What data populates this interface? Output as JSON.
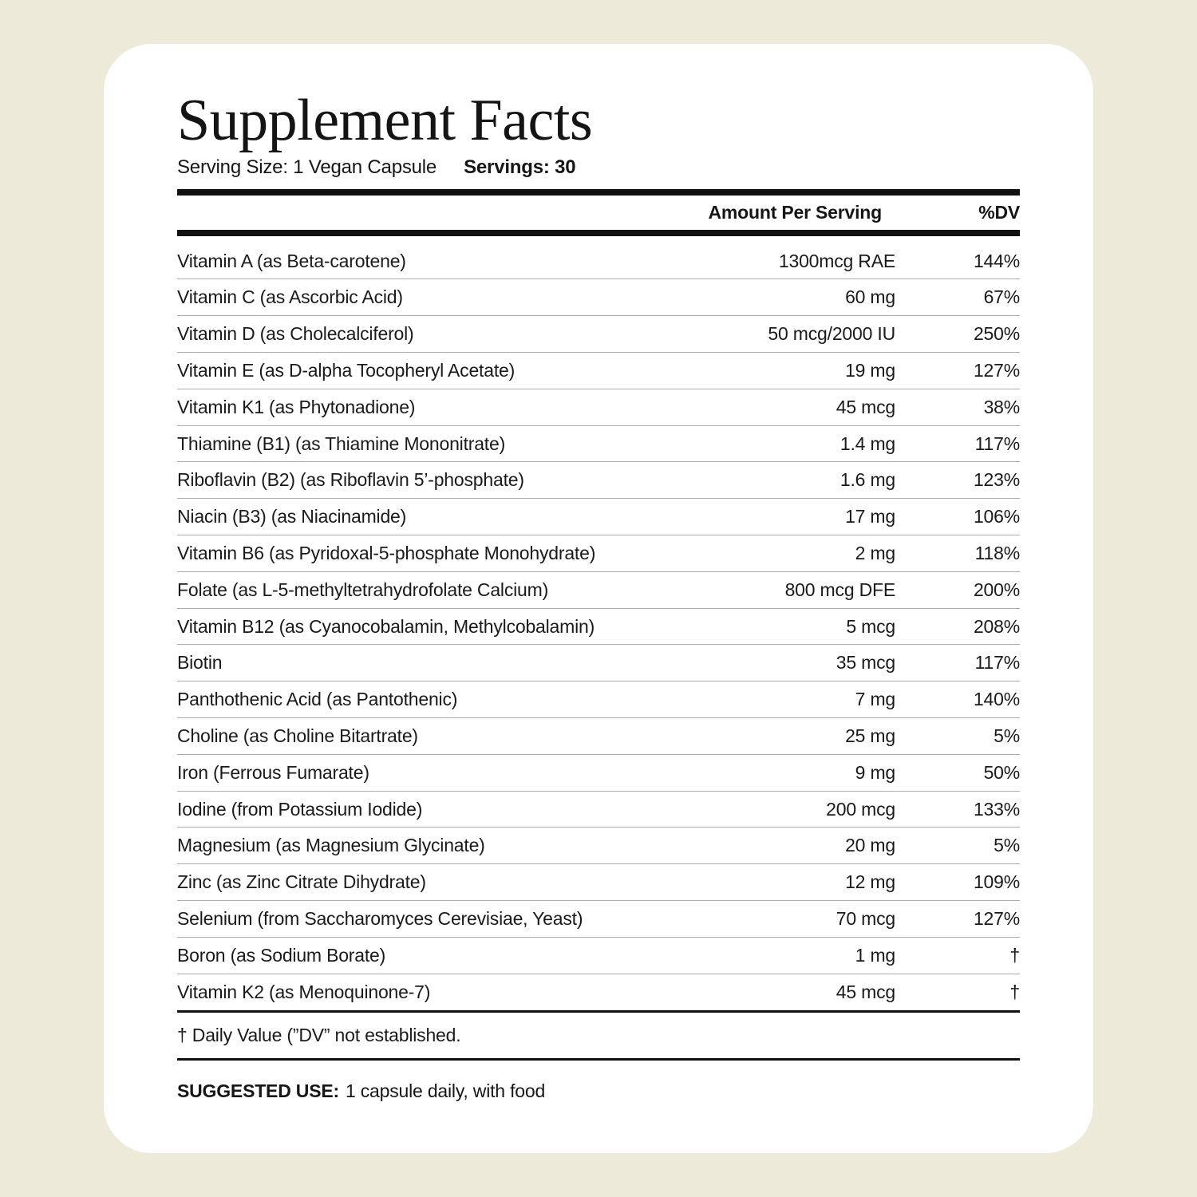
{
  "header": {
    "title": "Supplement Facts",
    "serving_size": "Serving Size: 1 Vegan Capsule",
    "servings": "Servings: 30"
  },
  "table": {
    "columns": {
      "amount": "Amount Per Serving",
      "dv": "%DV"
    },
    "rows": [
      {
        "name": "Vitamin A (as Beta-carotene)",
        "amount": "1300mcg RAE",
        "dv": "144%"
      },
      {
        "name": "Vitamin C (as Ascorbic Acid)",
        "amount": "60 mg",
        "dv": "67%"
      },
      {
        "name": "Vitamin D (as Cholecalciferol)",
        "amount": "50 mcg/2000 IU",
        "dv": "250%"
      },
      {
        "name": "Vitamin E (as D-alpha Tocopheryl Acetate)",
        "amount": "19 mg",
        "dv": "127%"
      },
      {
        "name": "Vitamin K1 (as Phytonadione)",
        "amount": "45 mcg",
        "dv": "38%"
      },
      {
        "name": "Thiamine (B1) (as Thiamine Mononitrate)",
        "amount": "1.4 mg",
        "dv": "117%"
      },
      {
        "name": "Riboflavin (B2) (as Riboflavin 5’-phosphate)",
        "amount": "1.6 mg",
        "dv": "123%"
      },
      {
        "name": "Niacin (B3) (as Niacinamide)",
        "amount": "17 mg",
        "dv": "106%"
      },
      {
        "name": "Vitamin B6 (as Pyridoxal-5-phosphate Monohydrate)",
        "amount": "2 mg",
        "dv": "118%"
      },
      {
        "name": "Folate (as L-5-methyltetrahydrofolate Calcium)",
        "amount": "800 mcg DFE",
        "dv": "200%"
      },
      {
        "name": "Vitamin B12 (as Cyanocobalamin, Methylcobalamin)",
        "amount": "5 mcg",
        "dv": "208%"
      },
      {
        "name": "Biotin",
        "amount": "35 mcg",
        "dv": "117%"
      },
      {
        "name": "Panthothenic Acid (as Pantothenic)",
        "amount": "7 mg",
        "dv": "140%"
      },
      {
        "name": "Choline (as Choline Bitartrate)",
        "amount": "25 mg",
        "dv": "5%"
      },
      {
        "name": "Iron (Ferrous Fumarate)",
        "amount": "9 mg",
        "dv": "50%"
      },
      {
        "name": "Iodine (from Potassium Iodide)",
        "amount": "200 mcg",
        "dv": "133%"
      },
      {
        "name": "Magnesium (as Magnesium Glycinate)",
        "amount": "20 mg",
        "dv": "5%"
      },
      {
        "name": "Zinc (as Zinc Citrate Dihydrate)",
        "amount": "12 mg",
        "dv": "109%"
      },
      {
        "name": "Selenium (from Saccharomyces Cerevisiae, Yeast)",
        "amount": "70 mcg",
        "dv": "127%"
      },
      {
        "name": "Boron (as Sodium Borate)",
        "amount": "1 mg",
        "dv": "†"
      },
      {
        "name": "Vitamin K2 (as Menoquinone-7)",
        "amount": "45 mcg",
        "dv": "†"
      }
    ]
  },
  "footnote": "† Daily Value (”DV” not established.",
  "suggested_use": {
    "label": "SUGGESTED USE:",
    "text": "1 capsule daily, with food"
  },
  "colors": {
    "background": "#EDEADA",
    "card": "#FFFFFF",
    "text": "#161616",
    "rule_thick": "#111111",
    "rule_thin": "#AEAEAE"
  }
}
